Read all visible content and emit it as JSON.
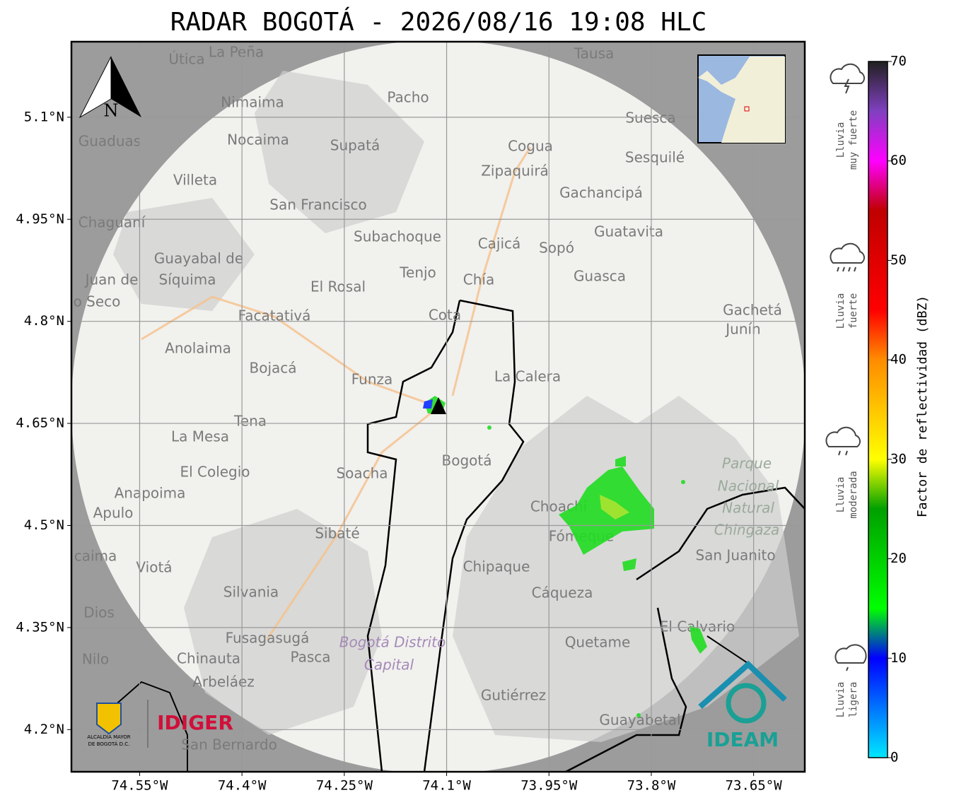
{
  "title": "RADAR BOGOTÁ - 2026/08/16 19:08 HLC",
  "map": {
    "lonlim": [
      -74.65,
      -73.575
    ],
    "latlim": [
      4.138,
      5.211
    ],
    "grid": true,
    "compass": "N",
    "lonticks": [
      {
        "value": -74.55,
        "label": "74.55°W"
      },
      {
        "value": -74.4,
        "label": "74.4°W"
      },
      {
        "value": -74.25,
        "label": "74.25°W"
      },
      {
        "value": -74.1,
        "label": "74.1°W"
      },
      {
        "value": -73.95,
        "label": "73.95°W"
      },
      {
        "value": -73.8,
        "label": "73.8°W"
      },
      {
        "value": -73.65,
        "label": "73.65°W"
      }
    ],
    "latticks": [
      {
        "value": 5.1,
        "label": "5.1°N"
      },
      {
        "value": 4.95,
        "label": "4.95°N"
      },
      {
        "value": 4.8,
        "label": "4.8°N"
      },
      {
        "value": 4.65,
        "label": "4.65°N"
      },
      {
        "value": 4.5,
        "label": "4.5°N"
      },
      {
        "value": 4.35,
        "label": "4.35°N"
      },
      {
        "value": 4.2,
        "label": "4.2°N"
      }
    ],
    "places": [
      "La Peña",
      "Útica",
      "Tausa",
      "Pacho",
      "Nimaima",
      "Guaduas",
      "Nocaima",
      "Supatá",
      "Suesca",
      "Cogua",
      "Zipaquirá",
      "Sesquilé",
      "Villeta",
      "San Francisco",
      "Gachancipá",
      "Chaguaní",
      "Subachoque",
      "Cajicá",
      "Sopó",
      "Guatavita",
      "Guayabal de",
      "Síquima",
      "Tenjo",
      "Chía",
      "Guasca",
      "Juan de",
      "o Seco",
      "El Rosal",
      "Facatativá",
      "Cota",
      "Gachetá",
      "Junín",
      "Anolaima",
      "Bojacá",
      "Funza",
      "La Calera",
      "Tena",
      "La Mesa",
      "Bogotá",
      "Soacha",
      "El Colegio",
      "Parque",
      "Nacional",
      "Natural",
      "Chingaza",
      "Anapoima",
      "Apulo",
      "Choachí",
      "Fómeque",
      "Sibaté",
      "San Juanito",
      "Chipaque",
      "Viotá",
      "caima",
      "Silvania",
      "Cáqueza",
      "Dios",
      "El Calvario",
      "Fusagasugá",
      "Quetame",
      "Bogotá Distrito",
      "Capital",
      "Nilo",
      "Chinauta",
      "Pasca",
      "Arbeláez",
      "Gutiérrez",
      "Guayabetal",
      "San Bernardo"
    ]
  },
  "colorbar": {
    "label": "Factor de reflectividad (dBZ)",
    "lim": [
      0,
      70
    ],
    "ticks": [
      0,
      10,
      20,
      30,
      40,
      50,
      60,
      70
    ],
    "colors": [
      {
        "value": 0,
        "color": "#00e8ff"
      },
      {
        "value": 10,
        "color": "#0000ff"
      },
      {
        "value": 15,
        "color": "#00ff00"
      },
      {
        "value": 25,
        "color": "#00a000"
      },
      {
        "value": 30,
        "color": "#ffff00"
      },
      {
        "value": 40,
        "color": "#ff8c00"
      },
      {
        "value": 45,
        "color": "#ff0000"
      },
      {
        "value": 55,
        "color": "#c00000"
      },
      {
        "value": 60,
        "color": "#ff00ff"
      },
      {
        "value": 65,
        "color": "#8040c0"
      },
      {
        "value": 70,
        "color": "#202020"
      }
    ]
  },
  "legend": [
    {
      "lines": [
        "Lluvia",
        "muy fuerte"
      ]
    },
    {
      "lines": [
        "Lluvia",
        "fuerte"
      ]
    },
    {
      "lines": [
        "Lluvia",
        "moderada"
      ]
    },
    {
      "lines": [
        "Lluvia",
        "ligera"
      ]
    }
  ],
  "logos": {
    "alcaldia": [
      "ALCALDÍA MAYOR",
      "DE BOGOTÁ D.C."
    ],
    "idiger": "IDIGER",
    "ideam": "IDEAM"
  }
}
